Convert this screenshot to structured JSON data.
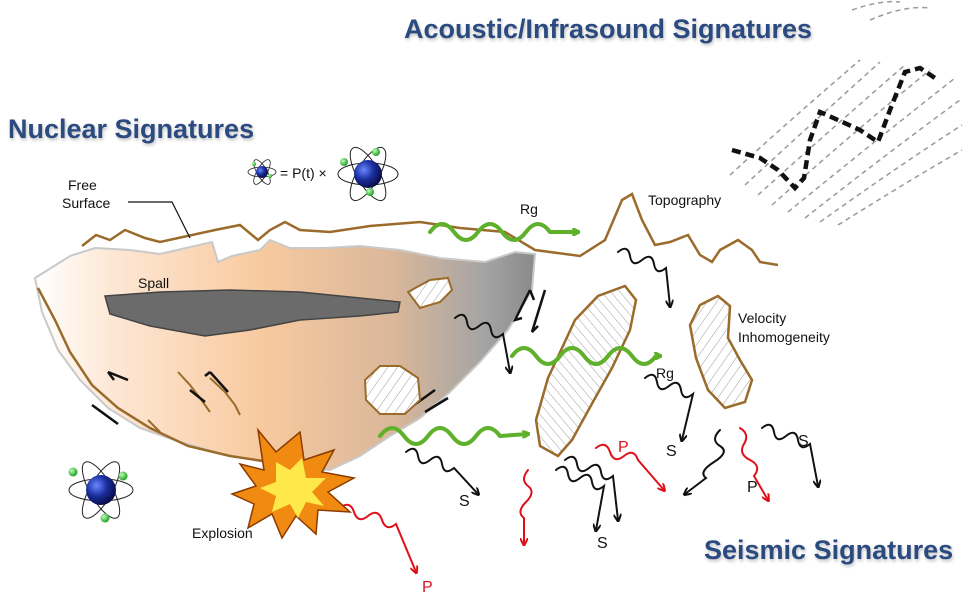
{
  "headings": {
    "acoustic": "Acoustic/Infrasound Signatures",
    "nuclear": "Nuclear Signatures",
    "seismic": "Seismic Signatures"
  },
  "labels": {
    "free_surface_line1": "Free",
    "free_surface_line2": "Surface",
    "spall": "Spall",
    "explosion": "Explosion",
    "topography": "Topography",
    "velocity_line1": "Velocity",
    "velocity_line2": "Inhomogeneity",
    "equation": "= P(t) ×",
    "rg": "Rg",
    "p": "P",
    "s": "S"
  },
  "colors": {
    "heading": "#2a4a80",
    "topography": "#9a6b2a",
    "rayleigh_wave": "#5fb02a",
    "p_wave": "#e0101a",
    "s_wave": "#111111",
    "nucleus": "#1a2fa0",
    "electron": "#2ec72e",
    "fireball_outer": "#f08a10",
    "fireball_inner": "#ffe84a"
  }
}
